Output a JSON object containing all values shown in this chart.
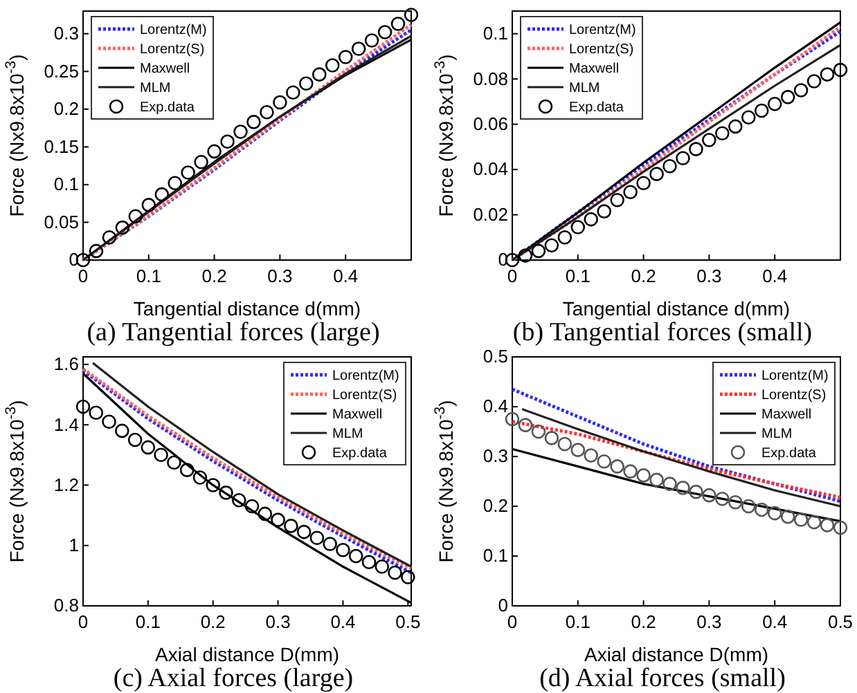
{
  "chart_data": [
    {
      "type": "line",
      "title": "(a) Tangential forces (large)",
      "xlabel": "Tangential distance d(mm)",
      "ylabel": "Force (Nx9.8x10$^{-3}$)",
      "xlim": [
        0,
        0.5
      ],
      "ylim": [
        0,
        0.33
      ],
      "xticks": [
        0,
        0.1,
        0.2,
        0.3,
        0.4
      ],
      "yticks": [
        0,
        0.05,
        0.1,
        0.15,
        0.2,
        0.25,
        0.3
      ],
      "legend": "top left",
      "grid": false,
      "x": [
        0,
        0.1,
        0.2,
        0.3,
        0.4,
        0.5
      ],
      "series": [
        {
          "name": "Lorentz(M)",
          "color": "#2a2aff",
          "line_style": "dotted",
          "values": [
            0,
            0.058,
            0.12,
            0.185,
            0.248,
            0.305
          ]
        },
        {
          "name": "Lorentz(S)",
          "color": "#ff6060",
          "line_style": "dotted",
          "values": [
            0,
            0.059,
            0.122,
            0.187,
            0.251,
            0.312
          ]
        },
        {
          "name": "Maxwell",
          "color": "#000000",
          "line_style": "solid",
          "values": [
            0,
            0.065,
            0.13,
            0.19,
            0.245,
            0.292
          ]
        },
        {
          "name": "MLM",
          "color": "#202020",
          "line_style": "solid",
          "values": [
            0,
            0.064,
            0.128,
            0.19,
            0.247,
            0.297
          ]
        },
        {
          "name": "Exp.data",
          "type": "scatter",
          "marker": "circle",
          "color": "#000000",
          "x": [
            0,
            0.02,
            0.04,
            0.06,
            0.08,
            0.1,
            0.12,
            0.14,
            0.16,
            0.18,
            0.2,
            0.22,
            0.24,
            0.26,
            0.28,
            0.3,
            0.32,
            0.34,
            0.36,
            0.38,
            0.4,
            0.42,
            0.44,
            0.46,
            0.48,
            0.5
          ],
          "values": [
            0,
            0.012,
            0.03,
            0.043,
            0.058,
            0.073,
            0.087,
            0.102,
            0.116,
            0.13,
            0.144,
            0.157,
            0.17,
            0.183,
            0.196,
            0.209,
            0.222,
            0.234,
            0.246,
            0.258,
            0.269,
            0.28,
            0.291,
            0.302,
            0.313,
            0.325
          ]
        }
      ]
    },
    {
      "type": "line",
      "title": "(b) Tangential forces (small)",
      "xlabel": "Tangential distance d(mm)",
      "ylabel": "Force (Nx9.8x10$^{-3}$)",
      "xlim": [
        0,
        0.5
      ],
      "ylim": [
        0,
        0.11
      ],
      "xticks": [
        0,
        0.1,
        0.2,
        0.3,
        0.4
      ],
      "yticks": [
        0,
        0.02,
        0.04,
        0.06,
        0.08,
        0.1
      ],
      "legend": "top left",
      "grid": false,
      "x": [
        0,
        0.1,
        0.2,
        0.3,
        0.4,
        0.5
      ],
      "series": [
        {
          "name": "Lorentz(M)",
          "color": "#2a2aff",
          "line_style": "dotted",
          "values": [
            0,
            0.021,
            0.042,
            0.062,
            0.082,
            0.101
          ]
        },
        {
          "name": "Lorentz(S)",
          "color": "#ff6060",
          "line_style": "dotted",
          "values": [
            0,
            0.019,
            0.04,
            0.061,
            0.082,
            0.103
          ]
        },
        {
          "name": "Maxwell",
          "color": "#000000",
          "line_style": "solid",
          "values": [
            0,
            0.021,
            0.043,
            0.064,
            0.085,
            0.105
          ]
        },
        {
          "name": "MLM",
          "color": "#202020",
          "line_style": "solid",
          "values": [
            0,
            0.019,
            0.039,
            0.058,
            0.077,
            0.095
          ]
        },
        {
          "name": "Exp.data",
          "type": "scatter",
          "marker": "circle",
          "color": "#000000",
          "x": [
            0,
            0.02,
            0.04,
            0.06,
            0.08,
            0.1,
            0.12,
            0.14,
            0.16,
            0.18,
            0.2,
            0.22,
            0.24,
            0.26,
            0.28,
            0.3,
            0.32,
            0.34,
            0.36,
            0.38,
            0.4,
            0.42,
            0.44,
            0.46,
            0.48,
            0.5
          ],
          "values": [
            0,
            0.002,
            0.004,
            0.0065,
            0.01,
            0.0145,
            0.018,
            0.0215,
            0.0265,
            0.03,
            0.034,
            0.038,
            0.0415,
            0.045,
            0.049,
            0.053,
            0.056,
            0.059,
            0.063,
            0.066,
            0.069,
            0.072,
            0.075,
            0.079,
            0.082,
            0.084
          ]
        }
      ]
    },
    {
      "type": "line",
      "title": "(c) Axial forces (large)",
      "xlabel": "Axial distance D(mm)",
      "ylabel": "Force (Nx9.8x10$^{-3}$)",
      "xlim": [
        0,
        0.505
      ],
      "ylim": [
        0.8,
        1.625
      ],
      "xticks": [
        0,
        0.1,
        0.2,
        0.3,
        0.4,
        0.5
      ],
      "yticks": [
        0.8,
        1,
        1.2,
        1.4,
        1.6
      ],
      "legend": "top right",
      "grid": false,
      "x": [
        0,
        0.1,
        0.2,
        0.3,
        0.4,
        0.505
      ],
      "series": [
        {
          "name": "Lorentz(M)",
          "color": "#2a2aff",
          "line_style": "dotted",
          "values": [
            1.58,
            1.42,
            1.28,
            1.15,
            1.03,
            0.91
          ]
        },
        {
          "name": "Lorentz(S)",
          "color": "#ff6060",
          "line_style": "dotted",
          "values": [
            1.585,
            1.43,
            1.29,
            1.16,
            1.04,
            0.925
          ]
        },
        {
          "name": "Maxwell",
          "color": "#000000",
          "line_style": "solid",
          "values": [
            1.57,
            1.37,
            1.2,
            1.06,
            0.93,
            0.81
          ]
        },
        {
          "name": "MLM",
          "color": "#202020",
          "line_style": "solid",
          "x": [
            0.015,
            0.1,
            0.2,
            0.3,
            0.4,
            0.505
          ],
          "values": [
            1.605,
            1.46,
            1.31,
            1.17,
            1.05,
            0.93
          ]
        },
        {
          "name": "Exp.data",
          "type": "scatter",
          "marker": "circle",
          "color": "#000000",
          "x": [
            0,
            0.02,
            0.04,
            0.06,
            0.08,
            0.1,
            0.12,
            0.14,
            0.16,
            0.18,
            0.2,
            0.22,
            0.24,
            0.26,
            0.28,
            0.3,
            0.32,
            0.34,
            0.36,
            0.38,
            0.4,
            0.42,
            0.44,
            0.46,
            0.48,
            0.5
          ],
          "values": [
            1.46,
            1.44,
            1.41,
            1.38,
            1.35,
            1.325,
            1.3,
            1.275,
            1.25,
            1.225,
            1.2,
            1.175,
            1.15,
            1.13,
            1.105,
            1.085,
            1.065,
            1.045,
            1.025,
            1.005,
            0.985,
            0.965,
            0.945,
            0.93,
            0.91,
            0.895
          ]
        }
      ]
    },
    {
      "type": "line",
      "title": "(d) Axial forces (small)",
      "xlabel": "Axial distance D(mm)",
      "ylabel": "Force (Nx9.8x10$^{-3}$)",
      "xlim": [
        0,
        0.5
      ],
      "ylim": [
        0,
        0.5
      ],
      "xticks": [
        0,
        0.1,
        0.2,
        0.3,
        0.4,
        0.5
      ],
      "yticks": [
        0,
        0.1,
        0.2,
        0.3,
        0.4,
        0.5
      ],
      "legend": "top right",
      "grid": false,
      "x": [
        0,
        0.1,
        0.2,
        0.3,
        0.4,
        0.5
      ],
      "series": [
        {
          "name": "Lorentz(M)",
          "color": "#2a2aff",
          "line_style": "dotted",
          "values": [
            0.435,
            0.38,
            0.325,
            0.28,
            0.245,
            0.21
          ]
        },
        {
          "name": "Lorentz(S)",
          "color": "#ff3030",
          "line_style": "dotted",
          "values": [
            0.37,
            0.345,
            0.31,
            0.275,
            0.245,
            0.218
          ]
        },
        {
          "name": "Maxwell",
          "color": "#000000",
          "line_style": "solid",
          "values": [
            0.315,
            0.28,
            0.245,
            0.22,
            0.195,
            0.17
          ]
        },
        {
          "name": "MLM",
          "color": "#202020",
          "line_style": "solid",
          "x": [
            0.015,
            0.1,
            0.2,
            0.3,
            0.4,
            0.5
          ],
          "values": [
            0.395,
            0.355,
            0.31,
            0.27,
            0.232,
            0.2
          ]
        },
        {
          "name": "Exp.data",
          "type": "scatter",
          "marker": "circle",
          "color": "#555555",
          "x": [
            0,
            0.02,
            0.04,
            0.06,
            0.08,
            0.1,
            0.12,
            0.14,
            0.16,
            0.18,
            0.2,
            0.22,
            0.24,
            0.26,
            0.28,
            0.3,
            0.32,
            0.34,
            0.36,
            0.38,
            0.4,
            0.42,
            0.44,
            0.46,
            0.48,
            0.5
          ],
          "values": [
            0.375,
            0.363,
            0.35,
            0.337,
            0.325,
            0.313,
            0.302,
            0.29,
            0.28,
            0.27,
            0.262,
            0.253,
            0.245,
            0.237,
            0.229,
            0.222,
            0.215,
            0.208,
            0.2,
            0.193,
            0.186,
            0.179,
            0.173,
            0.168,
            0.162,
            0.157
          ]
        }
      ]
    }
  ]
}
